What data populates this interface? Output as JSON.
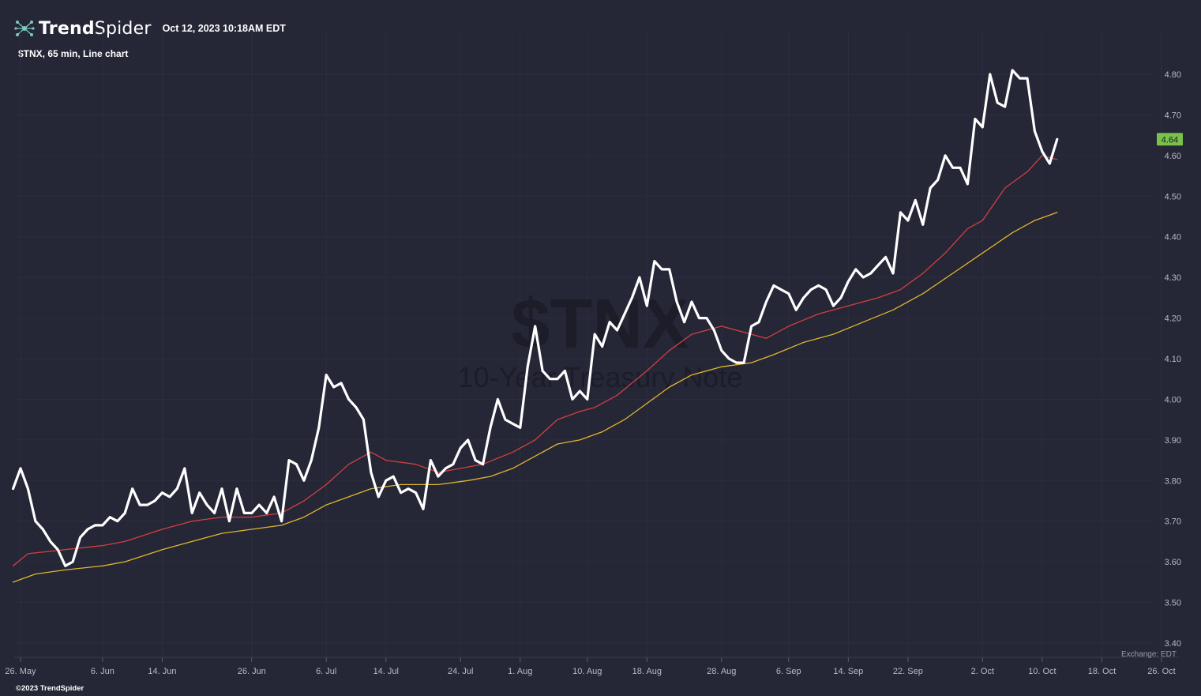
{
  "header": {
    "brand_bold": "Trend",
    "brand_light": "Spider",
    "timestamp": "Oct 12, 2023 10:18AM EDT",
    "logo_icon": "trendspider-logo-icon"
  },
  "chart_desc": "$TNX, 65 min, Line chart",
  "watermark": {
    "symbol": "$TNX",
    "name": "10-Year Treasury Note"
  },
  "exchange_label": "Exchange: EDT",
  "copyright": "©2023 TrendSpider",
  "colors": {
    "background": "#252636",
    "price_line": "#ffffff",
    "ma_fast": "#d2403f",
    "ma_slow": "#e0b72d",
    "last_price_badge": "#7ac04a"
  },
  "chart_data": {
    "type": "line",
    "title": "$TNX, 65 min, Line chart",
    "y_axis_side": "right",
    "ylim": [
      3.4,
      4.8
    ],
    "y_ticks": [
      "3.40",
      "3.50",
      "3.60",
      "3.70",
      "3.80",
      "3.90",
      "4.00",
      "4.10",
      "4.20",
      "4.30",
      "4.40",
      "4.50",
      "4.60",
      "4.70",
      "4.80"
    ],
    "x_range": [
      "2023-05-26",
      "2023-10-26"
    ],
    "x_ticks": [
      {
        "label": "26. May",
        "date": "2023-05-26"
      },
      {
        "label": "6. Jun",
        "date": "2023-06-06"
      },
      {
        "label": "14. Jun",
        "date": "2023-06-14"
      },
      {
        "label": "26. Jun",
        "date": "2023-06-26"
      },
      {
        "label": "6. Jul",
        "date": "2023-07-06"
      },
      {
        "label": "14. Jul",
        "date": "2023-07-14"
      },
      {
        "label": "24. Jul",
        "date": "2023-07-24"
      },
      {
        "label": "1. Aug",
        "date": "2023-08-01"
      },
      {
        "label": "10. Aug",
        "date": "2023-08-10"
      },
      {
        "label": "18. Aug",
        "date": "2023-08-18"
      },
      {
        "label": "28. Aug",
        "date": "2023-08-28"
      },
      {
        "label": "6. Sep",
        "date": "2023-09-06"
      },
      {
        "label": "14. Sep",
        "date": "2023-09-14"
      },
      {
        "label": "22. Sep",
        "date": "2023-09-22"
      },
      {
        "label": "2. Oct",
        "date": "2023-10-02"
      },
      {
        "label": "10. Oct",
        "date": "2023-10-10"
      },
      {
        "label": "18. Oct",
        "date": "2023-10-18"
      },
      {
        "label": "26. Oct",
        "date": "2023-10-26"
      }
    ],
    "last_price": "4.64",
    "series": [
      {
        "role": "price",
        "color": "#ffffff",
        "points": [
          [
            "2023-05-25",
            3.78
          ],
          [
            "2023-05-26",
            3.83
          ],
          [
            "2023-05-27",
            3.78
          ],
          [
            "2023-05-28",
            3.7
          ],
          [
            "2023-05-29",
            3.68
          ],
          [
            "2023-05-30",
            3.65
          ],
          [
            "2023-05-31",
            3.63
          ],
          [
            "2023-06-01",
            3.59
          ],
          [
            "2023-06-02",
            3.6
          ],
          [
            "2023-06-03",
            3.66
          ],
          [
            "2023-06-04",
            3.68
          ],
          [
            "2023-06-05",
            3.69
          ],
          [
            "2023-06-06",
            3.69
          ],
          [
            "2023-06-07",
            3.71
          ],
          [
            "2023-06-08",
            3.7
          ],
          [
            "2023-06-09",
            3.72
          ],
          [
            "2023-06-10",
            3.78
          ],
          [
            "2023-06-11",
            3.74
          ],
          [
            "2023-06-12",
            3.74
          ],
          [
            "2023-06-13",
            3.75
          ],
          [
            "2023-06-14",
            3.77
          ],
          [
            "2023-06-15",
            3.76
          ],
          [
            "2023-06-16",
            3.78
          ],
          [
            "2023-06-17",
            3.83
          ],
          [
            "2023-06-18",
            3.72
          ],
          [
            "2023-06-19",
            3.77
          ],
          [
            "2023-06-20",
            3.74
          ],
          [
            "2023-06-21",
            3.72
          ],
          [
            "2023-06-22",
            3.78
          ],
          [
            "2023-06-23",
            3.7
          ],
          [
            "2023-06-24",
            3.78
          ],
          [
            "2023-06-25",
            3.72
          ],
          [
            "2023-06-26",
            3.72
          ],
          [
            "2023-06-27",
            3.74
          ],
          [
            "2023-06-28",
            3.72
          ],
          [
            "2023-06-29",
            3.76
          ],
          [
            "2023-06-30",
            3.7
          ],
          [
            "2023-07-01",
            3.85
          ],
          [
            "2023-07-02",
            3.84
          ],
          [
            "2023-07-03",
            3.8
          ],
          [
            "2023-07-04",
            3.85
          ],
          [
            "2023-07-05",
            3.93
          ],
          [
            "2023-07-06",
            4.06
          ],
          [
            "2023-07-07",
            4.03
          ],
          [
            "2023-07-08",
            4.04
          ],
          [
            "2023-07-09",
            4.0
          ],
          [
            "2023-07-10",
            3.98
          ],
          [
            "2023-07-11",
            3.95
          ],
          [
            "2023-07-12",
            3.82
          ],
          [
            "2023-07-13",
            3.76
          ],
          [
            "2023-07-14",
            3.8
          ],
          [
            "2023-07-15",
            3.81
          ],
          [
            "2023-07-16",
            3.77
          ],
          [
            "2023-07-17",
            3.78
          ],
          [
            "2023-07-18",
            3.77
          ],
          [
            "2023-07-19",
            3.73
          ],
          [
            "2023-07-20",
            3.85
          ],
          [
            "2023-07-21",
            3.81
          ],
          [
            "2023-07-22",
            3.83
          ],
          [
            "2023-07-23",
            3.84
          ],
          [
            "2023-07-24",
            3.88
          ],
          [
            "2023-07-25",
            3.9
          ],
          [
            "2023-07-26",
            3.85
          ],
          [
            "2023-07-27",
            3.84
          ],
          [
            "2023-07-28",
            3.93
          ],
          [
            "2023-07-29",
            4.0
          ],
          [
            "2023-07-30",
            3.95
          ],
          [
            "2023-07-31",
            3.94
          ],
          [
            "2023-08-01",
            3.93
          ],
          [
            "2023-08-02",
            4.08
          ],
          [
            "2023-08-03",
            4.18
          ],
          [
            "2023-08-04",
            4.07
          ],
          [
            "2023-08-05",
            4.05
          ],
          [
            "2023-08-06",
            4.05
          ],
          [
            "2023-08-07",
            4.07
          ],
          [
            "2023-08-08",
            4.0
          ],
          [
            "2023-08-09",
            4.02
          ],
          [
            "2023-08-10",
            4.0
          ],
          [
            "2023-08-11",
            4.16
          ],
          [
            "2023-08-12",
            4.13
          ],
          [
            "2023-08-13",
            4.19
          ],
          [
            "2023-08-14",
            4.17
          ],
          [
            "2023-08-15",
            4.21
          ],
          [
            "2023-08-16",
            4.25
          ],
          [
            "2023-08-17",
            4.3
          ],
          [
            "2023-08-18",
            4.23
          ],
          [
            "2023-08-19",
            4.34
          ],
          [
            "2023-08-20",
            4.32
          ],
          [
            "2023-08-21",
            4.32
          ],
          [
            "2023-08-22",
            4.24
          ],
          [
            "2023-08-23",
            4.19
          ],
          [
            "2023-08-24",
            4.24
          ],
          [
            "2023-08-25",
            4.2
          ],
          [
            "2023-08-26",
            4.2
          ],
          [
            "2023-08-27",
            4.17
          ],
          [
            "2023-08-28",
            4.12
          ],
          [
            "2023-08-29",
            4.1
          ],
          [
            "2023-08-30",
            4.09
          ],
          [
            "2023-08-31",
            4.09
          ],
          [
            "2023-09-01",
            4.18
          ],
          [
            "2023-09-02",
            4.19
          ],
          [
            "2023-09-03",
            4.24
          ],
          [
            "2023-09-04",
            4.28
          ],
          [
            "2023-09-05",
            4.27
          ],
          [
            "2023-09-06",
            4.26
          ],
          [
            "2023-09-07",
            4.22
          ],
          [
            "2023-09-08",
            4.25
          ],
          [
            "2023-09-09",
            4.27
          ],
          [
            "2023-09-10",
            4.28
          ],
          [
            "2023-09-11",
            4.27
          ],
          [
            "2023-09-12",
            4.23
          ],
          [
            "2023-09-13",
            4.25
          ],
          [
            "2023-09-14",
            4.29
          ],
          [
            "2023-09-15",
            4.32
          ],
          [
            "2023-09-16",
            4.3
          ],
          [
            "2023-09-17",
            4.31
          ],
          [
            "2023-09-18",
            4.33
          ],
          [
            "2023-09-19",
            4.35
          ],
          [
            "2023-09-20",
            4.31
          ],
          [
            "2023-09-21",
            4.46
          ],
          [
            "2023-09-22",
            4.44
          ],
          [
            "2023-09-23",
            4.49
          ],
          [
            "2023-09-24",
            4.43
          ],
          [
            "2023-09-25",
            4.52
          ],
          [
            "2023-09-26",
            4.54
          ],
          [
            "2023-09-27",
            4.6
          ],
          [
            "2023-09-28",
            4.57
          ],
          [
            "2023-09-29",
            4.57
          ],
          [
            "2023-09-30",
            4.53
          ],
          [
            "2023-10-01",
            4.69
          ],
          [
            "2023-10-02",
            4.67
          ],
          [
            "2023-10-03",
            4.8
          ],
          [
            "2023-10-04",
            4.73
          ],
          [
            "2023-10-05",
            4.72
          ],
          [
            "2023-10-06",
            4.81
          ],
          [
            "2023-10-07",
            4.79
          ],
          [
            "2023-10-08",
            4.79
          ],
          [
            "2023-10-09",
            4.66
          ],
          [
            "2023-10-10",
            4.61
          ],
          [
            "2023-10-11",
            4.58
          ],
          [
            "2023-10-12",
            4.64
          ]
        ]
      },
      {
        "role": "moving-average",
        "color": "#d2403f",
        "points": [
          [
            "2023-05-25",
            3.59
          ],
          [
            "2023-05-27",
            3.62
          ],
          [
            "2023-06-01",
            3.63
          ],
          [
            "2023-06-06",
            3.64
          ],
          [
            "2023-06-09",
            3.65
          ],
          [
            "2023-06-14",
            3.68
          ],
          [
            "2023-06-18",
            3.7
          ],
          [
            "2023-06-22",
            3.71
          ],
          [
            "2023-06-26",
            3.71
          ],
          [
            "2023-06-30",
            3.72
          ],
          [
            "2023-07-03",
            3.75
          ],
          [
            "2023-07-06",
            3.79
          ],
          [
            "2023-07-09",
            3.84
          ],
          [
            "2023-07-12",
            3.87
          ],
          [
            "2023-07-14",
            3.85
          ],
          [
            "2023-07-18",
            3.84
          ],
          [
            "2023-07-21",
            3.82
          ],
          [
            "2023-07-24",
            3.83
          ],
          [
            "2023-07-27",
            3.84
          ],
          [
            "2023-07-31",
            3.87
          ],
          [
            "2023-08-03",
            3.9
          ],
          [
            "2023-08-06",
            3.95
          ],
          [
            "2023-08-09",
            3.97
          ],
          [
            "2023-08-11",
            3.98
          ],
          [
            "2023-08-14",
            4.01
          ],
          [
            "2023-08-18",
            4.07
          ],
          [
            "2023-08-21",
            4.12
          ],
          [
            "2023-08-24",
            4.16
          ],
          [
            "2023-08-28",
            4.18
          ],
          [
            "2023-08-30",
            4.17
          ],
          [
            "2023-09-03",
            4.15
          ],
          [
            "2023-09-06",
            4.18
          ],
          [
            "2023-09-10",
            4.21
          ],
          [
            "2023-09-14",
            4.23
          ],
          [
            "2023-09-18",
            4.25
          ],
          [
            "2023-09-21",
            4.27
          ],
          [
            "2023-09-24",
            4.31
          ],
          [
            "2023-09-27",
            4.36
          ],
          [
            "2023-09-30",
            4.42
          ],
          [
            "2023-10-02",
            4.44
          ],
          [
            "2023-10-05",
            4.52
          ],
          [
            "2023-10-08",
            4.56
          ],
          [
            "2023-10-10",
            4.6
          ],
          [
            "2023-10-12",
            4.59
          ]
        ]
      },
      {
        "role": "moving-average",
        "color": "#e0b72d",
        "points": [
          [
            "2023-05-25",
            3.55
          ],
          [
            "2023-05-28",
            3.57
          ],
          [
            "2023-06-01",
            3.58
          ],
          [
            "2023-06-06",
            3.59
          ],
          [
            "2023-06-09",
            3.6
          ],
          [
            "2023-06-14",
            3.63
          ],
          [
            "2023-06-18",
            3.65
          ],
          [
            "2023-06-22",
            3.67
          ],
          [
            "2023-06-26",
            3.68
          ],
          [
            "2023-06-30",
            3.69
          ],
          [
            "2023-07-03",
            3.71
          ],
          [
            "2023-07-06",
            3.74
          ],
          [
            "2023-07-09",
            3.76
          ],
          [
            "2023-07-12",
            3.78
          ],
          [
            "2023-07-16",
            3.79
          ],
          [
            "2023-07-21",
            3.79
          ],
          [
            "2023-07-25",
            3.8
          ],
          [
            "2023-07-28",
            3.81
          ],
          [
            "2023-07-31",
            3.83
          ],
          [
            "2023-08-03",
            3.86
          ],
          [
            "2023-08-06",
            3.89
          ],
          [
            "2023-08-09",
            3.9
          ],
          [
            "2023-08-12",
            3.92
          ],
          [
            "2023-08-15",
            3.95
          ],
          [
            "2023-08-18",
            3.99
          ],
          [
            "2023-08-21",
            4.03
          ],
          [
            "2023-08-24",
            4.06
          ],
          [
            "2023-08-28",
            4.08
          ],
          [
            "2023-09-01",
            4.09
          ],
          [
            "2023-09-04",
            4.11
          ],
          [
            "2023-09-08",
            4.14
          ],
          [
            "2023-09-12",
            4.16
          ],
          [
            "2023-09-16",
            4.19
          ],
          [
            "2023-09-20",
            4.22
          ],
          [
            "2023-09-24",
            4.26
          ],
          [
            "2023-09-28",
            4.31
          ],
          [
            "2023-10-02",
            4.36
          ],
          [
            "2023-10-06",
            4.41
          ],
          [
            "2023-10-09",
            4.44
          ],
          [
            "2023-10-12",
            4.46
          ]
        ]
      }
    ]
  }
}
